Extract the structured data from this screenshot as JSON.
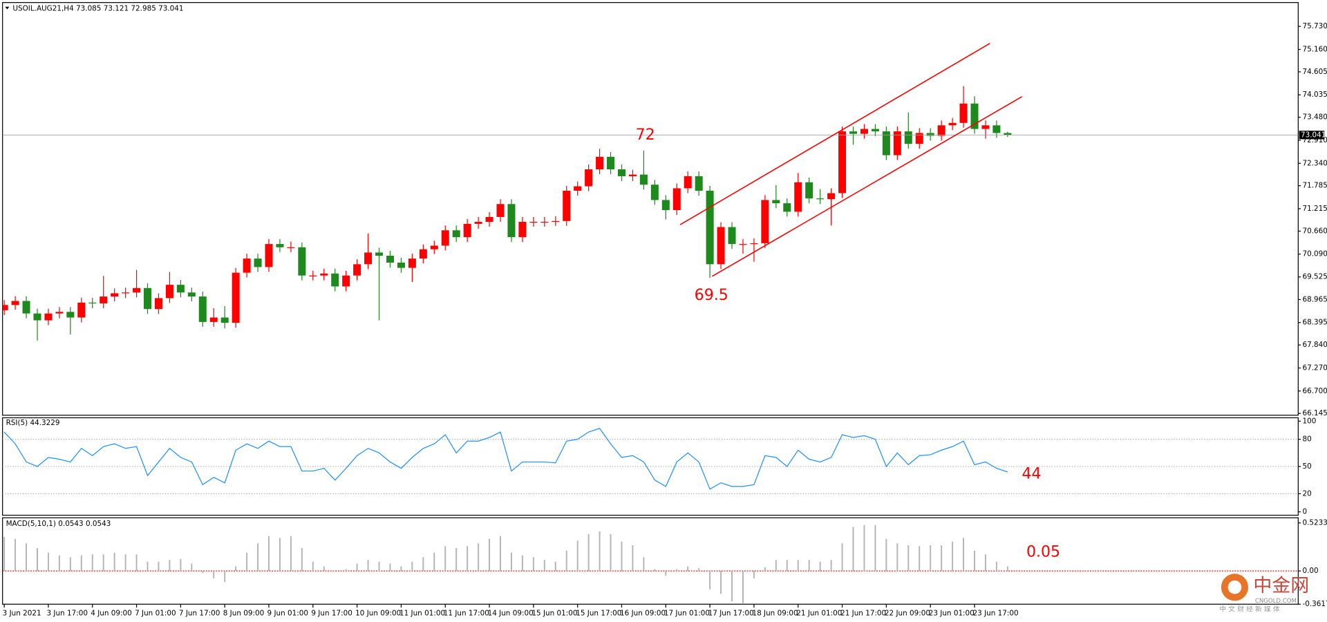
{
  "chart_data": [
    {
      "type": "candlestick",
      "title": "USOIL.AUG21,H4  73.085 73.121 72.985 73.041",
      "categories": [
        "3 Jun 2021",
        null,
        null,
        null,
        "3 Jun 17:00",
        null,
        null,
        null,
        "4 Jun 09:00",
        null,
        null,
        null,
        "7 Jun 01:00",
        null,
        null,
        null,
        "7 Jun 17:00",
        null,
        null,
        null,
        "8 Jun 09:00",
        null,
        null,
        null,
        "9 Jun 01:00",
        null,
        null,
        null,
        "9 Jun 17:00",
        null,
        null,
        null,
        "10 Jun 09:00",
        null,
        null,
        null,
        "11 Jun 01:00",
        null,
        null,
        null,
        "11 Jun 17:00",
        null,
        null,
        null,
        "14 Jun 09:00",
        null,
        null,
        null,
        "15 Jun 01:00",
        null,
        null,
        null,
        "15 Jun 17:00",
        null,
        null,
        null,
        "16 Jun 09:00",
        null,
        null,
        null,
        "17 Jun 01:00",
        null,
        null,
        null,
        "17 Jun 17:00",
        null,
        null,
        null,
        "18 Jun 09:00",
        null,
        null,
        null,
        "21 Jun 01:00",
        null,
        null,
        null,
        "21 Jun 17:00",
        null,
        null,
        null,
        "22 Jun 09:00",
        null,
        null,
        null,
        "23 Jun 01:00",
        null,
        null,
        null,
        "23 Jun 17:00",
        null,
        null,
        null
      ],
      "open": [
        68.7,
        68.83,
        68.93,
        68.62,
        68.45,
        68.62,
        68.66,
        68.52,
        68.89,
        68.87,
        69.04,
        69.12,
        69.14,
        69.25,
        68.73,
        69.0,
        69.33,
        69.14,
        69.04,
        68.41,
        68.52,
        68.39,
        69.63,
        69.98,
        69.77,
        70.34,
        70.26,
        70.26,
        69.56,
        69.56,
        69.61,
        69.29,
        69.56,
        69.84,
        70.13,
        70.05,
        69.88,
        69.75,
        69.98,
        70.21,
        70.3,
        70.68,
        70.51,
        70.84,
        70.89,
        71.01,
        71.33,
        70.51,
        70.89,
        70.89,
        70.89,
        70.91,
        71.66,
        71.77,
        72.19,
        72.5,
        72.19,
        72.02,
        72.06,
        71.81,
        71.43,
        71.18,
        71.72,
        72.02,
        71.66,
        69.84,
        70.76,
        70.34,
        70.34,
        70.36,
        71.43,
        71.35,
        71.14,
        71.87,
        71.47,
        71.45,
        71.6,
        73.13,
        73.07,
        73.19,
        73.13,
        72.54,
        73.13,
        72.82,
        73.09,
        73.02,
        73.28,
        73.34,
        73.82,
        73.19,
        73.28,
        73.09
      ],
      "high": [
        68.95,
        69.05,
        69.05,
        68.74,
        68.74,
        68.78,
        68.78,
        69.01,
        69.01,
        69.55,
        69.24,
        69.26,
        69.7,
        69.37,
        69.12,
        69.65,
        69.45,
        69.26,
        69.16,
        68.75,
        68.8,
        69.75,
        70.1,
        70.1,
        70.46,
        70.46,
        70.4,
        70.38,
        69.68,
        69.73,
        69.73,
        69.68,
        69.96,
        70.6,
        70.25,
        70.17,
        70.0,
        70.1,
        70.33,
        70.42,
        70.8,
        70.8,
        70.96,
        71.01,
        71.13,
        71.45,
        71.45,
        71.01,
        71.01,
        71.01,
        71.03,
        71.78,
        71.89,
        72.31,
        72.7,
        72.62,
        72.31,
        72.18,
        72.65,
        71.93,
        71.55,
        71.84,
        72.14,
        72.14,
        71.78,
        70.88,
        70.88,
        70.46,
        70.48,
        71.55,
        71.8,
        71.47,
        72.1,
        71.99,
        71.7,
        71.72,
        73.25,
        73.25,
        73.31,
        73.31,
        73.25,
        73.25,
        73.6,
        73.21,
        73.21,
        73.4,
        73.46,
        74.25,
        74.0,
        73.4,
        73.4,
        73.12
      ],
      "low": [
        68.58,
        68.71,
        68.5,
        67.95,
        68.33,
        68.5,
        68.1,
        68.4,
        68.75,
        68.75,
        68.92,
        69.0,
        69.02,
        68.61,
        68.61,
        68.88,
        69.02,
        68.92,
        68.29,
        68.29,
        68.25,
        68.27,
        69.51,
        69.65,
        69.65,
        70.14,
        70.14,
        69.44,
        69.44,
        69.44,
        69.17,
        69.17,
        69.44,
        69.72,
        68.45,
        69.76,
        69.63,
        69.4,
        69.86,
        70.09,
        70.18,
        70.39,
        70.39,
        70.72,
        70.77,
        70.89,
        70.39,
        70.39,
        70.77,
        70.77,
        70.79,
        70.79,
        71.54,
        71.65,
        72.07,
        72.07,
        71.9,
        71.9,
        71.69,
        71.31,
        70.95,
        71.06,
        71.6,
        71.54,
        69.5,
        69.72,
        70.22,
        70.1,
        69.9,
        70.24,
        71.23,
        71.02,
        71.02,
        71.35,
        71.33,
        70.8,
        71.48,
        72.8,
        72.95,
        73.01,
        72.42,
        72.42,
        72.7,
        72.7,
        72.9,
        72.9,
        73.16,
        73.22,
        73.07,
        72.95,
        72.97,
        72.99
      ],
      "close": [
        68.83,
        68.93,
        68.62,
        68.45,
        68.62,
        68.66,
        68.52,
        68.89,
        68.87,
        69.04,
        69.12,
        69.14,
        69.25,
        68.73,
        69.0,
        69.33,
        69.14,
        69.04,
        68.41,
        68.52,
        68.39,
        69.63,
        69.98,
        69.77,
        70.34,
        70.26,
        70.26,
        69.56,
        69.56,
        69.61,
        69.29,
        69.56,
        69.84,
        70.13,
        70.05,
        69.88,
        69.75,
        69.98,
        70.21,
        70.3,
        70.68,
        70.51,
        70.84,
        70.89,
        71.01,
        71.33,
        70.51,
        70.89,
        70.89,
        70.89,
        70.91,
        71.66,
        71.77,
        72.19,
        72.5,
        72.19,
        72.02,
        72.06,
        71.81,
        71.43,
        71.18,
        71.72,
        72.02,
        71.66,
        69.84,
        70.76,
        70.34,
        70.34,
        70.36,
        71.43,
        71.35,
        71.14,
        71.87,
        71.47,
        71.45,
        71.6,
        73.13,
        73.07,
        73.19,
        73.13,
        72.54,
        73.13,
        72.82,
        73.09,
        73.02,
        73.28,
        73.34,
        73.82,
        73.19,
        73.28,
        73.09,
        73.04
      ],
      "up_color": "#ff0000",
      "down_color": "#1e8a1e",
      "ylim": [
        66.1,
        76.3
      ],
      "yticks": [
        {
          "value": 75.73,
          "label": "75.730"
        },
        {
          "value": 75.16,
          "label": "75.160"
        },
        {
          "value": 74.605,
          "label": "74.605"
        },
        {
          "value": 74.035,
          "label": "74.035"
        },
        {
          "value": 73.48,
          "label": "73.480"
        },
        {
          "value": 72.91,
          "label": "72.910"
        },
        {
          "value": 72.34,
          "label": "72.340"
        },
        {
          "value": 71.785,
          "label": "71.785"
        },
        {
          "value": 71.215,
          "label": "71.215"
        },
        {
          "value": 70.66,
          "label": "70.660"
        },
        {
          "value": 70.09,
          "label": "70.090"
        },
        {
          "value": 69.525,
          "label": "69.525"
        },
        {
          "value": 68.965,
          "label": "68.965"
        },
        {
          "value": 68.395,
          "label": "68.395"
        },
        {
          "value": 67.84,
          "label": "67.840"
        },
        {
          "value": 67.27,
          "label": "67.270"
        },
        {
          "value": 66.7,
          "label": "66.700"
        },
        {
          "value": 66.145,
          "label": "66.145"
        }
      ],
      "last": 73.041,
      "trendlines": [
        {
          "color": "#ff0000",
          "x": [
            61.3,
            89.4
          ],
          "y": [
            70.82,
            75.31
          ]
        },
        {
          "color": "#ff0000",
          "x": [
            64.2,
            92.3
          ],
          "y": [
            69.54,
            73.99
          ]
        }
      ],
      "annotations": [
        "72",
        "69.5"
      ]
    },
    {
      "type": "line",
      "title": "RSI(5) 44.3229",
      "color": "#1e90ff",
      "values": [
        88,
        75,
        55,
        50,
        60,
        58,
        55,
        70,
        62,
        72,
        75,
        70,
        72,
        40,
        55,
        70,
        60,
        55,
        30,
        38,
        32,
        68,
        75,
        70,
        78,
        72,
        72,
        45,
        45,
        48,
        35,
        48,
        62,
        70,
        65,
        55,
        48,
        60,
        70,
        75,
        85,
        65,
        78,
        78,
        82,
        88,
        45,
        55,
        55,
        55,
        54,
        78,
        80,
        88,
        92,
        75,
        60,
        62,
        55,
        35,
        28,
        55,
        65,
        55,
        25,
        32,
        28,
        28,
        30,
        62,
        60,
        50,
        68,
        58,
        55,
        60,
        85,
        82,
        84,
        80,
        50,
        65,
        52,
        62,
        63,
        68,
        72,
        78,
        52,
        55,
        48,
        44
      ],
      "ylim": [
        0,
        100
      ],
      "yticks": [
        100,
        80,
        50,
        20,
        0
      ],
      "annotations": [
        "44"
      ]
    },
    {
      "type": "bar",
      "title": "MACD(5,10,1) 0.0543 0.0543",
      "color": "#b4b4b4",
      "zero_line_color": "#ff0000",
      "values": [
        0.37,
        0.35,
        0.3,
        0.25,
        0.2,
        0.17,
        0.15,
        0.17,
        0.18,
        0.18,
        0.2,
        0.18,
        0.18,
        0.1,
        0.1,
        0.12,
        0.13,
        0.08,
        -0.02,
        -0.08,
        -0.12,
        0.05,
        0.2,
        0.3,
        0.38,
        0.36,
        0.38,
        0.25,
        0.1,
        0.05,
        0.0,
        0.02,
        0.08,
        0.12,
        0.1,
        0.08,
        0.05,
        0.1,
        0.15,
        0.2,
        0.27,
        0.25,
        0.27,
        0.3,
        0.35,
        0.38,
        0.2,
        0.17,
        0.15,
        0.12,
        0.1,
        0.22,
        0.33,
        0.4,
        0.43,
        0.4,
        0.32,
        0.28,
        0.15,
        0.02,
        -0.05,
        0.02,
        0.05,
        0.03,
        -0.2,
        -0.25,
        -0.33,
        -0.35,
        -0.08,
        0.04,
        0.12,
        0.12,
        0.12,
        0.12,
        0.1,
        0.12,
        0.3,
        0.48,
        0.5,
        0.5,
        0.35,
        0.3,
        0.28,
        0.27,
        0.28,
        0.28,
        0.32,
        0.36,
        0.22,
        0.18,
        0.1,
        0.05
      ],
      "ylim": [
        -0.3617,
        0.57
      ],
      "yticks": [
        0.5233,
        {
          "value": 0,
          "label": "0.00"
        },
        -0.3617
      ],
      "annotations": [
        "0.05"
      ]
    }
  ],
  "watermark": {
    "name": "中金网",
    "site": "CNGOLD.COM",
    "tagline": "中 文 财 经 新 媒 体"
  }
}
